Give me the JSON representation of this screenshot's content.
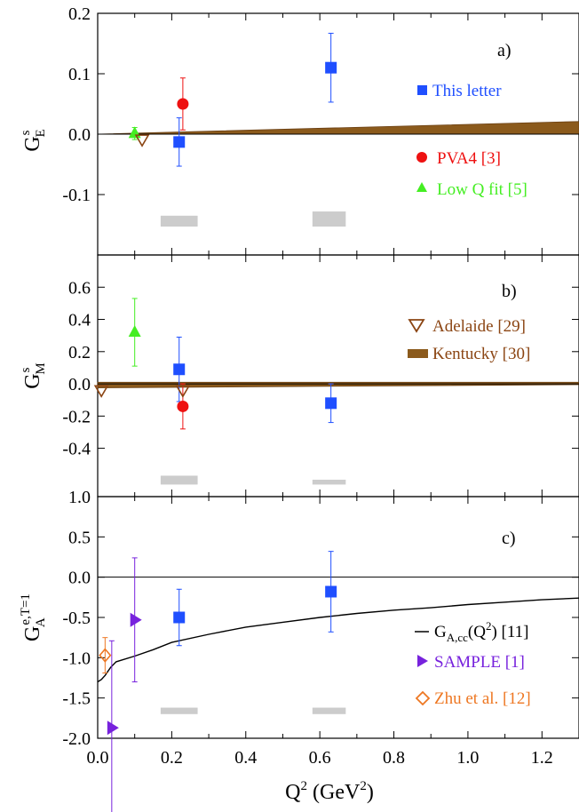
{
  "chart_data": [
    {
      "type": "scatter",
      "panel_label": "a)",
      "ylabel": "G",
      "ylabel_sup": "s",
      "ylabel_sub": "E",
      "ylim": [
        -0.2,
        0.2
      ],
      "yticks": [
        0.2,
        0.1,
        0.0,
        -0.1
      ],
      "ytick_labels": [
        "0.2",
        "0.1",
        "0.0",
        "-0.1"
      ],
      "zero_line": true,
      "band": {
        "x": [
          0.0,
          1.3
        ],
        "lo": [
          0.0,
          0.0
        ],
        "hi": [
          0.0,
          0.021
        ],
        "color": "#8B5A1C"
      },
      "series": [
        {
          "name": "This letter",
          "marker": "square",
          "color": "#1f4fff",
          "points": [
            {
              "x": 0.22,
              "y": -0.013,
              "err": 0.04
            },
            {
              "x": 0.63,
              "y": 0.11,
              "err": 0.057
            }
          ]
        },
        {
          "name": "PVA4 [3]",
          "marker": "circle",
          "color": "#ee1111",
          "points": [
            {
              "x": 0.23,
              "y": 0.05,
              "err": 0.043
            }
          ]
        },
        {
          "name": "Low Q fit [5]",
          "marker": "triangle-up",
          "color": "#44ee22",
          "points": [
            {
              "x": 0.1,
              "y": 0.001,
              "err": 0.01
            }
          ]
        },
        {
          "name": "",
          "marker": "triangle-down-open",
          "color": "#8B4513",
          "points": [
            {
              "x": 0.12,
              "y": -0.009
            }
          ]
        }
      ],
      "systematics": [
        {
          "x0": 0.17,
          "x1": 0.27,
          "y0": -0.153,
          "y1": -0.135
        },
        {
          "x0": 0.58,
          "x1": 0.67,
          "y0": -0.153,
          "y1": -0.128
        }
      ],
      "legend": [
        {
          "label": "This letter",
          "marker": "square",
          "color": "#1f4fff"
        },
        {
          "label": "PVA4 [3]",
          "marker": "circle",
          "color": "#ee1111"
        },
        {
          "label": "Low Q fit [5]",
          "marker": "triangle-up",
          "color": "#44ee22"
        }
      ]
    },
    {
      "type": "scatter",
      "panel_label": "b)",
      "ylabel": "G",
      "ylabel_sup": "s",
      "ylabel_sub": "M",
      "ylim": [
        -0.7,
        0.8
      ],
      "yticks": [
        0.6,
        0.4,
        0.2,
        0.0,
        -0.2,
        -0.4
      ],
      "ytick_labels": [
        "0.6",
        "0.4",
        "0.2",
        "0.0",
        "-0.2",
        "-0.4"
      ],
      "zero_line": true,
      "band": {
        "x": [
          0.0,
          1.3
        ],
        "lo": [
          -0.025,
          -0.005
        ],
        "hi": [
          0.01,
          0.01
        ],
        "color": "#8B5A1C"
      },
      "series": [
        {
          "name": "This letter",
          "marker": "square",
          "color": "#1f4fff",
          "points": [
            {
              "x": 0.22,
              "y": 0.09,
              "err": 0.2
            },
            {
              "x": 0.63,
              "y": -0.12,
              "err": 0.12
            }
          ]
        },
        {
          "name": "PVA4 [3]",
          "marker": "circle",
          "color": "#ee1111",
          "points": [
            {
              "x": 0.23,
              "y": -0.14,
              "err": 0.14
            }
          ]
        },
        {
          "name": "Low Q fit [5]",
          "marker": "triangle-up",
          "color": "#44ee22",
          "points": [
            {
              "x": 0.1,
              "y": 0.32,
              "err": 0.21
            }
          ]
        },
        {
          "name": "Adelaide [29]",
          "marker": "triangle-down-open",
          "color": "#8B4513",
          "points": [
            {
              "x": 0.01,
              "y": -0.04
            },
            {
              "x": 0.23,
              "y": -0.04
            }
          ]
        }
      ],
      "systematics": [
        {
          "x0": 0.17,
          "x1": 0.27,
          "y0": -0.625,
          "y1": -0.57
        },
        {
          "x0": 0.58,
          "x1": 0.67,
          "y0": -0.625,
          "y1": -0.595
        }
      ],
      "legend": [
        {
          "label": "Adelaide [29]",
          "marker": "triangle-down-open",
          "color": "#8B4513"
        },
        {
          "label": "Kentucky [30]",
          "marker": "band",
          "color": "#8B5A1C"
        }
      ]
    },
    {
      "type": "scatter",
      "panel_label": "c)",
      "ylabel": "G",
      "ylabel_sup": "e,T=1",
      "ylabel_sub": "A",
      "xlabel": "Q",
      "xlabel_sup1": "2",
      "xlabel_mid": " (GeV",
      "xlabel_sup2": "2",
      "xlabel_end": ")",
      "xlim": [
        0.0,
        1.3
      ],
      "ylim": [
        -2.0,
        1.0
      ],
      "yticks": [
        1.0,
        0.5,
        0.0,
        -0.5,
        -1.0,
        -1.5,
        -2.0
      ],
      "ytick_labels": [
        "1.0",
        "0.5",
        "0.0",
        "-0.5",
        "-1.0",
        "-1.5",
        "-2.0"
      ],
      "xticks": [
        0.0,
        0.2,
        0.4,
        0.6,
        0.8,
        1.0,
        1.2
      ],
      "xtick_labels": [
        "0.0",
        "0.2",
        "0.4",
        "0.6",
        "0.8",
        "1.0",
        "1.2"
      ],
      "zero_line": true,
      "curve": {
        "name": "G_A,cc(Q^2) [11]",
        "color": "#000000",
        "points": [
          [
            0.0,
            -1.3
          ],
          [
            0.01,
            -1.27
          ],
          [
            0.02,
            -1.22
          ],
          [
            0.035,
            -1.12
          ],
          [
            0.05,
            -1.05
          ],
          [
            0.1,
            -0.98
          ],
          [
            0.15,
            -0.9
          ],
          [
            0.2,
            -0.81
          ],
          [
            0.3,
            -0.71
          ],
          [
            0.4,
            -0.62
          ],
          [
            0.5,
            -0.56
          ],
          [
            0.6,
            -0.5
          ],
          [
            0.7,
            -0.45
          ],
          [
            0.8,
            -0.41
          ],
          [
            0.9,
            -0.38
          ],
          [
            1.0,
            -0.34
          ],
          [
            1.1,
            -0.31
          ],
          [
            1.2,
            -0.28
          ],
          [
            1.3,
            -0.26
          ]
        ]
      },
      "series": [
        {
          "name": "This letter",
          "marker": "square",
          "color": "#1f4fff",
          "points": [
            {
              "x": 0.22,
              "y": -0.5,
              "err": 0.35
            },
            {
              "x": 0.63,
              "y": -0.18,
              "err": 0.5
            }
          ]
        },
        {
          "name": "SAMPLE [1]",
          "marker": "triangle-right",
          "color": "#7722dd",
          "points": [
            {
              "x": 0.1,
              "y": -0.53,
              "err": 0.77
            },
            {
              "x": 0.038,
              "y": -1.87,
              "err": 1.08
            }
          ]
        },
        {
          "name": "Zhu et al. [12]",
          "marker": "diamond-open",
          "color": "#ee7722",
          "points": [
            {
              "x": 0.02,
              "y": -0.97,
              "err": 0.22
            }
          ]
        }
      ],
      "systematics": [
        {
          "x0": 0.17,
          "x1": 0.27,
          "y0": -1.7,
          "y1": -1.62
        },
        {
          "x0": 0.58,
          "x1": 0.67,
          "y0": -1.7,
          "y1": -1.62
        }
      ],
      "legend": [
        {
          "label": "G",
          "label_sub": "A,cc",
          "label_rest": "(Q",
          "label_sup": "2",
          "label_end": ") [11]",
          "marker": "line",
          "color": "#000000"
        },
        {
          "label": "SAMPLE [1]",
          "marker": "triangle-right",
          "color": "#7722dd"
        },
        {
          "label": "Zhu et al. [12]",
          "marker": "diamond-open",
          "color": "#ee7722"
        }
      ]
    }
  ]
}
